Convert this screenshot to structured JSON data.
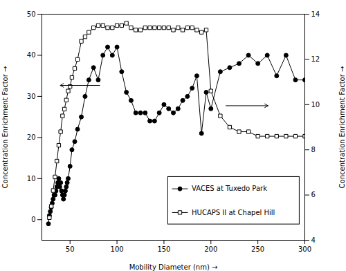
{
  "chart_data": {
    "type": "line",
    "xlabel": "Mobility Diameter (nm)",
    "ylabel": "Concentration Enrichment Factor",
    "y2label": "Concentration Enrichment Factor",
    "xlim": [
      20,
      300
    ],
    "xticks": [
      50,
      100,
      150,
      200,
      250,
      300
    ],
    "ylim": [
      -5,
      50
    ],
    "yticks": [
      0,
      10,
      20,
      30,
      40,
      50
    ],
    "y2lim": [
      4,
      14
    ],
    "y2ticks": [
      4,
      6,
      8,
      10,
      12,
      14
    ],
    "legend": "lower right",
    "series": [
      {
        "name": "VACES at Tuxedo Park",
        "color": "black",
        "marker": "circle",
        "x": [
          27,
          28,
          29,
          30,
          31,
          32,
          33,
          34,
          35,
          36,
          37,
          38,
          39,
          40,
          41,
          42,
          43,
          44,
          45,
          46,
          47,
          48,
          50,
          52,
          55,
          58,
          62,
          66,
          70,
          75,
          80,
          85,
          90,
          95,
          100,
          105,
          110,
          115,
          120,
          125,
          130,
          135,
          140,
          145,
          150,
          155,
          160,
          165,
          170,
          175,
          180,
          185,
          190,
          195,
          200,
          210,
          220,
          230,
          240,
          250,
          260,
          270,
          280,
          290,
          300
        ],
        "values": [
          -1,
          1,
          2,
          3,
          4,
          5,
          6,
          6,
          7,
          8,
          9,
          10,
          8,
          9,
          7,
          6,
          5,
          6,
          7,
          8,
          9,
          10,
          13,
          17,
          19,
          22,
          25,
          30,
          34,
          37,
          34,
          40,
          42,
          40,
          42,
          36,
          31,
          29,
          26,
          26,
          26,
          24,
          24,
          26,
          28,
          27,
          26,
          27,
          29,
          30,
          32,
          35,
          21,
          31,
          27,
          36,
          37,
          38,
          40,
          38,
          40,
          35,
          40,
          34,
          34
        ]
      },
      {
        "name": "HUCAPS II at Chapel Hill",
        "color": "black",
        "marker": "square",
        "axis": "y2",
        "x": [
          28,
          30,
          32,
          34,
          36,
          38,
          40,
          42,
          44,
          46,
          48,
          50,
          52,
          55,
          58,
          62,
          66,
          70,
          75,
          80,
          85,
          90,
          95,
          100,
          105,
          110,
          115,
          120,
          125,
          130,
          135,
          140,
          145,
          150,
          155,
          160,
          165,
          170,
          175,
          180,
          185,
          190,
          195,
          200,
          210,
          220,
          230,
          240,
          250,
          260,
          270,
          280,
          290,
          300
        ],
        "values": [
          5.0,
          5.5,
          6.2,
          6.8,
          7.5,
          8.2,
          8.8,
          9.5,
          9.8,
          10.2,
          10.6,
          10.8,
          11.2,
          11.6,
          12.0,
          12.8,
          13.0,
          13.2,
          13.4,
          13.5,
          13.5,
          13.4,
          13.4,
          13.5,
          13.5,
          13.6,
          13.4,
          13.3,
          13.3,
          13.4,
          13.4,
          13.4,
          13.4,
          13.4,
          13.4,
          13.3,
          13.4,
          13.3,
          13.4,
          13.4,
          13.3,
          13.2,
          13.3,
          10.6,
          9.5,
          9.0,
          8.8,
          8.8,
          8.6,
          8.6,
          8.6,
          8.6,
          8.6,
          8.6
        ]
      }
    ]
  }
}
